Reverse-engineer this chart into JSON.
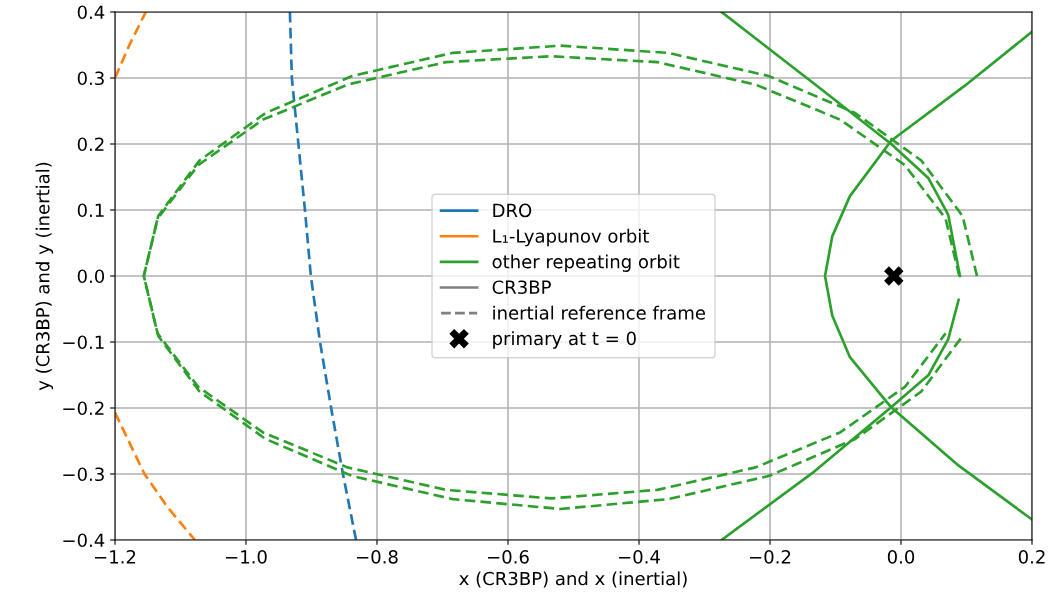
{
  "chart_data": {
    "type": "line",
    "xlabel": "x (CR3BP) and x (inertial)",
    "ylabel": "y (CR3BP) and y (inertial)",
    "xlim": [
      -1.2,
      0.2
    ],
    "ylim": [
      -0.4,
      0.4
    ],
    "xticks": [
      {
        "value": -1.2,
        "label": "−1.2"
      },
      {
        "value": -1.0,
        "label": "−1.0"
      },
      {
        "value": -0.8,
        "label": "−0.8"
      },
      {
        "value": -0.6,
        "label": "−0.6"
      },
      {
        "value": -0.4,
        "label": "−0.4"
      },
      {
        "value": -0.2,
        "label": "−0.2"
      },
      {
        "value": 0.0,
        "label": "0.0"
      },
      {
        "value": 0.2,
        "label": "0.2"
      }
    ],
    "yticks": [
      {
        "value": -0.4,
        "label": "−0.4"
      },
      {
        "value": -0.3,
        "label": "−0.3"
      },
      {
        "value": -0.2,
        "label": "−0.2"
      },
      {
        "value": -0.1,
        "label": "−0.1"
      },
      {
        "value": 0.0,
        "label": "0.0"
      },
      {
        "value": 0.1,
        "label": "0.1"
      },
      {
        "value": 0.2,
        "label": "0.2"
      },
      {
        "value": 0.3,
        "label": "0.3"
      },
      {
        "value": 0.4,
        "label": "0.4"
      }
    ],
    "grid": true,
    "legend": "center",
    "series": [
      {
        "name": "DRO",
        "color": "#1f77b4",
        "line_style": "dashed",
        "x": [
          -0.933,
          -0.93,
          -0.92,
          -0.91,
          -0.901,
          -0.887,
          -0.87,
          -0.852,
          -0.832
        ],
        "values": [
          0.4,
          0.3,
          0.2,
          0.1,
          0.0,
          -0.1,
          -0.2,
          -0.3,
          -0.4
        ]
      },
      {
        "name": "L₁-Lyapunov orbit",
        "color": "#ff7f0e",
        "line_style": "dashed",
        "x": [
          -1.2,
          -1.178,
          -1.153,
          null,
          -1.2,
          -1.155,
          -1.12,
          -1.078
        ],
        "values": [
          0.3,
          0.35,
          0.4,
          null,
          -0.207,
          -0.3,
          -0.35,
          -0.4
        ]
      },
      {
        "name": "other repeating orbit",
        "color": "#2ca02c",
        "line_style": "solid",
        "x": [
          -0.274,
          -0.132,
          -0.015,
          0.042,
          0.072,
          0.09,
          null,
          0.088,
          0.072,
          0.042,
          -0.015,
          0.085,
          0.2,
          null,
          0.2,
          0.097,
          -0.015,
          -0.078,
          -0.105,
          -0.116,
          -0.105,
          -0.078,
          -0.015,
          -0.132,
          -0.274
        ],
        "values": [
          0.4,
          0.291,
          0.2,
          0.148,
          0.093,
          0.0,
          null,
          -0.036,
          -0.096,
          -0.15,
          -0.199,
          -0.285,
          -0.369,
          null,
          0.37,
          0.288,
          0.205,
          0.121,
          0.06,
          0.0,
          -0.06,
          -0.123,
          -0.199,
          -0.296,
          -0.4
        ]
      },
      {
        "color": "#2ca02c",
        "line_style": "dashed",
        "x": [
          0.116,
          0.094,
          0.031,
          -0.07,
          -0.202,
          -0.355,
          -0.52,
          -0.685,
          -0.838,
          -0.97,
          -1.071,
          -1.134,
          -1.156,
          -1.134,
          -1.071,
          -0.97,
          -0.838,
          -0.685,
          -0.52,
          -0.355,
          -0.202,
          -0.07,
          0.031,
          0.094
        ],
        "values": [
          0.0,
          0.091,
          0.175,
          0.247,
          0.303,
          0.338,
          0.349,
          0.338,
          0.303,
          0.247,
          0.175,
          0.091,
          0.0,
          -0.091,
          -0.175,
          -0.247,
          -0.303,
          -0.338,
          -0.353,
          -0.338,
          -0.303,
          -0.247,
          -0.175,
          -0.091
        ]
      },
      {
        "color": "#2ca02c",
        "line_style": "dashed",
        "x": [
          0.089,
          0.068,
          0.006,
          -0.093,
          -0.222,
          -0.372,
          -0.534,
          -0.695,
          -0.845,
          -0.974,
          -1.073,
          -1.135,
          -1.156,
          -1.135,
          -1.073,
          -0.974,
          -0.845,
          -0.695,
          -0.534,
          -0.372,
          -0.222,
          -0.093,
          0.006,
          0.068
        ],
        "values": [
          0.0,
          0.087,
          0.168,
          0.237,
          0.29,
          0.324,
          0.333,
          0.324,
          0.29,
          0.237,
          0.168,
          0.087,
          0.0,
          -0.087,
          -0.168,
          -0.237,
          -0.29,
          -0.324,
          -0.337,
          -0.324,
          -0.29,
          -0.237,
          -0.168,
          -0.087
        ]
      },
      {
        "name": "CR3BP",
        "color": "#808080",
        "line_style": "solid"
      },
      {
        "name": "inertial reference frame",
        "color": "#808080",
        "line_style": "dashed"
      },
      {
        "type": "scatter",
        "name": "primary at t = 0",
        "color": "#000000",
        "marker": "cross",
        "x": [
          -0.011
        ],
        "values": [
          0.0
        ]
      }
    ]
  }
}
